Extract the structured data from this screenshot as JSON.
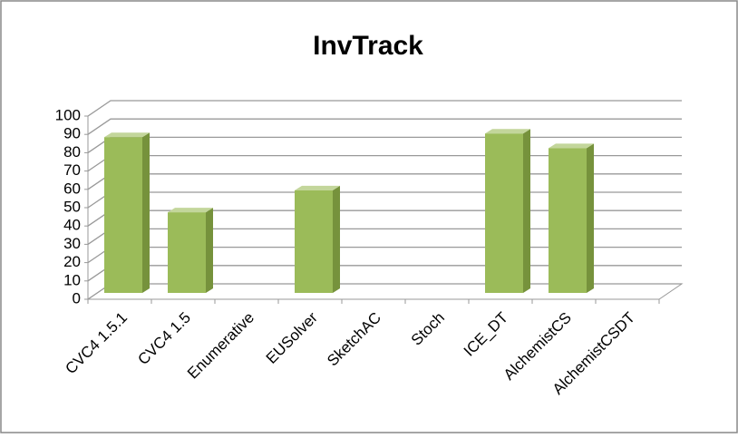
{
  "chart_data": {
    "type": "bar3d",
    "title": "InvTrack",
    "categories": [
      "CVC4 1.5.1",
      "CVC4 1.5",
      "Enumerative",
      "EUSolver",
      "SketchAC",
      "Stoch",
      "ICE_DT",
      "AlchemistCS",
      "AlchemistCSDT"
    ],
    "values": [
      85,
      44,
      0,
      56,
      0,
      0,
      87,
      79,
      0
    ],
    "color": "#9bbb59",
    "ylim": [
      0,
      100
    ],
    "yticks": [
      0,
      10,
      20,
      30,
      40,
      50,
      60,
      70,
      80,
      90,
      100
    ],
    "grid": true
  }
}
